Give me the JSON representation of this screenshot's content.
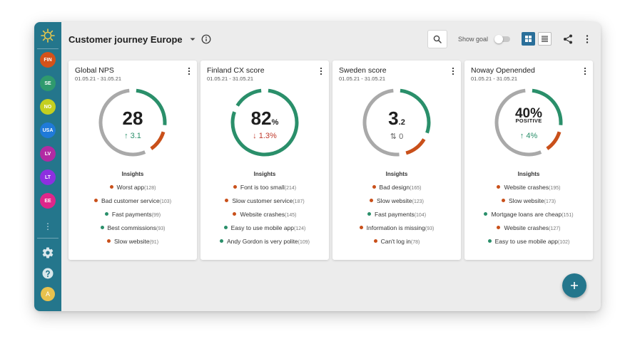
{
  "header": {
    "title": "Customer journey Europe",
    "show_goal_label": "Show goal",
    "show_goal_on": false
  },
  "sidebar": {
    "countries": [
      {
        "code": "FIN",
        "color": "#d4521a"
      },
      {
        "code": "SE",
        "color": "#2f9a6d"
      },
      {
        "code": "NO",
        "color": "#c4cf1f"
      },
      {
        "code": "USA",
        "color": "#1f7ad9"
      },
      {
        "code": "LV",
        "color": "#b22aa3"
      },
      {
        "code": "LT",
        "color": "#8d2fe0"
      },
      {
        "code": "EE",
        "color": "#e0268a"
      }
    ],
    "avatar_initial": "A",
    "icons": [
      "sun-logo-icon",
      "gear-icon",
      "help-icon",
      "more-vertical-icon"
    ]
  },
  "colors": {
    "positive": "#2a8f6a",
    "negative": "#c9501a",
    "neutral": "#a9a9a9",
    "sidebar": "#24768c"
  },
  "cards": [
    {
      "title": "Global NPS",
      "date": "01.05.21 - 31.05.21",
      "value": "28",
      "unit": "",
      "sublabel": "",
      "change": "3.1",
      "change_dir": "up",
      "gauge": {
        "positive": 0.28,
        "negative": 0.14
      },
      "insights_label": "Insights",
      "insights": [
        {
          "text": "Worst app",
          "count": "(128)",
          "sentiment": "negative"
        },
        {
          "text": "Bad customer service",
          "count": "(103)",
          "sentiment": "negative"
        },
        {
          "text": "Fast payments",
          "count": "(99)",
          "sentiment": "positive"
        },
        {
          "text": "Best commissions",
          "count": "(93)",
          "sentiment": "positive"
        },
        {
          "text": "Slow website",
          "count": "(91)",
          "sentiment": "negative"
        }
      ]
    },
    {
      "title": "Finland CX score",
      "date": "01.05.21 - 31.05.21",
      "value": "82",
      "unit": "%",
      "sublabel": "",
      "change": "1.3%",
      "change_dir": "down",
      "gauge": {
        "positive": 0.82,
        "negative": 0
      },
      "insights_label": "Insights",
      "insights": [
        {
          "text": "Font is too small",
          "count": "(214)",
          "sentiment": "negative"
        },
        {
          "text": "Slow customer service",
          "count": "(187)",
          "sentiment": "negative"
        },
        {
          "text": "Website crashes",
          "count": "(145)",
          "sentiment": "negative"
        },
        {
          "text": "Easy to use mobile app",
          "count": "(124)",
          "sentiment": "positive"
        },
        {
          "text": "Andy Gordon is very polite",
          "count": "(109)",
          "sentiment": "positive"
        }
      ]
    },
    {
      "title": "Sweden score",
      "date": "01.05.21 - 31.05.21",
      "value": "3",
      "unit": ".2",
      "sublabel": "",
      "change": "0",
      "change_dir": "flat",
      "gauge": {
        "positive": 0.32,
        "negative": 0.15
      },
      "insights_label": "Insights",
      "insights": [
        {
          "text": "Bad design",
          "count": "(165)",
          "sentiment": "negative"
        },
        {
          "text": "Slow website",
          "count": "(123)",
          "sentiment": "negative"
        },
        {
          "text": "Fast payments",
          "count": "(104)",
          "sentiment": "positive"
        },
        {
          "text": "Information is missing",
          "count": "(93)",
          "sentiment": "negative"
        },
        {
          "text": "Can't log in",
          "count": "(78)",
          "sentiment": "negative"
        }
      ]
    },
    {
      "title": "Noway Openended",
      "date": "01.05.21 - 31.05.21",
      "value": "40%",
      "unit": "",
      "sublabel": "POSITIVE",
      "change": "4%",
      "change_dir": "up",
      "gauge": {
        "positive": 0.28,
        "negative": 0.14
      },
      "insights_label": "Insights",
      "insights": [
        {
          "text": "Website crashes",
          "count": "(195)",
          "sentiment": "negative"
        },
        {
          "text": "Slow website",
          "count": "(173)",
          "sentiment": "negative"
        },
        {
          "text": "Mortgage loans are cheap",
          "count": "(151)",
          "sentiment": "positive"
        },
        {
          "text": "Website crashes",
          "count": "(127)",
          "sentiment": "negative"
        },
        {
          "text": "Easy to use mobile app",
          "count": "(102)",
          "sentiment": "positive"
        }
      ]
    }
  ]
}
